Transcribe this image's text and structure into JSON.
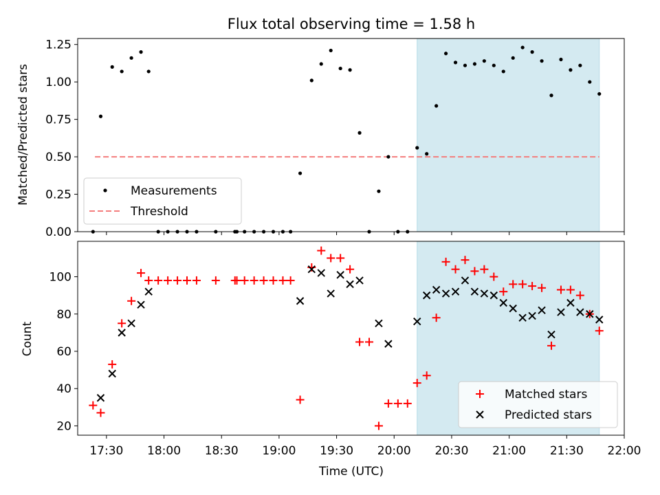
{
  "chart_data": [
    {
      "type": "scatter",
      "title": "Flux total observing time = 1.58 h",
      "xlabel": "",
      "ylabel": "Matched/Predicted stars",
      "xlim": [
        "17:15",
        "22:00"
      ],
      "ylim": [
        0,
        1.29
      ],
      "yticks": [
        "0.00",
        "0.25",
        "0.50",
        "0.75",
        "1.00",
        "1.25"
      ],
      "shaded_region": {
        "from": "20:12",
        "to": "21:47",
        "color": "#d4eaf1"
      },
      "threshold": {
        "name": "Threshold",
        "value": 0.5,
        "from": "17:24",
        "to": "21:47",
        "color": "#f47c7c"
      },
      "legend": {
        "location": "lower-left",
        "entries": [
          "Measurements",
          "Threshold"
        ]
      },
      "series": [
        {
          "name": "Measurements",
          "marker": "dot",
          "color": "#000000",
          "points": [
            [
              "17:23",
              0.0
            ],
            [
              "17:27",
              0.77
            ],
            [
              "17:33",
              1.1
            ],
            [
              "17:38",
              1.07
            ],
            [
              "17:43",
              1.16
            ],
            [
              "17:48",
              1.2
            ],
            [
              "17:52",
              1.07
            ],
            [
              "17:57",
              0.0
            ],
            [
              "18:02",
              0.0
            ],
            [
              "18:07",
              0.0
            ],
            [
              "18:12",
              0.0
            ],
            [
              "18:17",
              0.0
            ],
            [
              "18:27",
              0.0
            ],
            [
              "18:37",
              0.0
            ],
            [
              "18:38",
              0.0
            ],
            [
              "18:42",
              0.0
            ],
            [
              "18:47",
              0.0
            ],
            [
              "18:52",
              0.0
            ],
            [
              "18:57",
              0.0
            ],
            [
              "19:02",
              0.0
            ],
            [
              "19:06",
              0.0
            ],
            [
              "19:11",
              0.39
            ],
            [
              "19:17",
              1.01
            ],
            [
              "19:22",
              1.12
            ],
            [
              "19:27",
              1.21
            ],
            [
              "19:32",
              1.09
            ],
            [
              "19:37",
              1.08
            ],
            [
              "19:42",
              0.66
            ],
            [
              "19:47",
              0.0
            ],
            [
              "19:52",
              0.27
            ],
            [
              "19:57",
              0.5
            ],
            [
              "20:02",
              0.0
            ],
            [
              "20:07",
              0.0
            ],
            [
              "20:12",
              0.56
            ],
            [
              "20:17",
              0.52
            ],
            [
              "20:22",
              0.84
            ],
            [
              "20:27",
              1.19
            ],
            [
              "20:32",
              1.13
            ],
            [
              "20:37",
              1.11
            ],
            [
              "20:42",
              1.12
            ],
            [
              "20:47",
              1.14
            ],
            [
              "20:52",
              1.11
            ],
            [
              "20:57",
              1.07
            ],
            [
              "21:02",
              1.16
            ],
            [
              "21:07",
              1.23
            ],
            [
              "21:12",
              1.2
            ],
            [
              "21:17",
              1.14
            ],
            [
              "21:22",
              0.91
            ],
            [
              "21:27",
              1.15
            ],
            [
              "21:32",
              1.08
            ],
            [
              "21:37",
              1.11
            ],
            [
              "21:42",
              1.0
            ],
            [
              "21:47",
              0.92
            ]
          ]
        }
      ]
    },
    {
      "type": "scatter",
      "title": "",
      "xlabel": "Time (UTC)",
      "ylabel": "Count",
      "xlim": [
        "17:15",
        "22:00"
      ],
      "ylim": [
        15,
        119
      ],
      "yticks": [
        "20",
        "40",
        "60",
        "80",
        "100"
      ],
      "xticks": [
        "17:30",
        "18:00",
        "18:30",
        "19:00",
        "19:30",
        "20:00",
        "20:30",
        "21:00",
        "21:30",
        "22:00"
      ],
      "shaded_region": {
        "from": "20:12",
        "to": "21:47",
        "color": "#d4eaf1"
      },
      "legend": {
        "location": "lower-right",
        "entries": [
          "Matched stars",
          "Predicted stars"
        ]
      },
      "series": [
        {
          "name": "Matched stars",
          "marker": "plus",
          "color": "#ff0000",
          "points": [
            [
              "17:23",
              31
            ],
            [
              "17:27",
              27
            ],
            [
              "17:33",
              53
            ],
            [
              "17:38",
              75
            ],
            [
              "17:43",
              87
            ],
            [
              "17:48",
              102
            ],
            [
              "17:52",
              98
            ],
            [
              "17:57",
              98
            ],
            [
              "18:02",
              98
            ],
            [
              "18:07",
              98
            ],
            [
              "18:12",
              98
            ],
            [
              "18:17",
              98
            ],
            [
              "18:27",
              98
            ],
            [
              "18:37",
              98
            ],
            [
              "18:38",
              98
            ],
            [
              "18:42",
              98
            ],
            [
              "18:47",
              98
            ],
            [
              "18:52",
              98
            ],
            [
              "18:57",
              98
            ],
            [
              "19:02",
              98
            ],
            [
              "19:06",
              98
            ],
            [
              "19:11",
              34
            ],
            [
              "19:17",
              105
            ],
            [
              "19:22",
              114
            ],
            [
              "19:27",
              110
            ],
            [
              "19:32",
              110
            ],
            [
              "19:37",
              104
            ],
            [
              "19:42",
              65
            ],
            [
              "19:47",
              65
            ],
            [
              "19:52",
              20
            ],
            [
              "19:57",
              32
            ],
            [
              "20:02",
              32
            ],
            [
              "20:07",
              32
            ],
            [
              "20:12",
              43
            ],
            [
              "20:17",
              47
            ],
            [
              "20:22",
              78
            ],
            [
              "20:27",
              108
            ],
            [
              "20:32",
              104
            ],
            [
              "20:37",
              109
            ],
            [
              "20:42",
              103
            ],
            [
              "20:47",
              104
            ],
            [
              "20:52",
              100
            ],
            [
              "20:57",
              92
            ],
            [
              "21:02",
              96
            ],
            [
              "21:07",
              96
            ],
            [
              "21:12",
              95
            ],
            [
              "21:17",
              94
            ],
            [
              "21:22",
              63
            ],
            [
              "21:27",
              93
            ],
            [
              "21:32",
              93
            ],
            [
              "21:37",
              90
            ],
            [
              "21:42",
              80
            ],
            [
              "21:47",
              71
            ]
          ]
        },
        {
          "name": "Predicted stars",
          "marker": "x",
          "color": "#000000",
          "points": [
            [
              "17:27",
              35
            ],
            [
              "17:33",
              48
            ],
            [
              "17:38",
              70
            ],
            [
              "17:43",
              75
            ],
            [
              "17:48",
              85
            ],
            [
              "17:52",
              92
            ],
            [
              "19:11",
              87
            ],
            [
              "19:17",
              104
            ],
            [
              "19:22",
              102
            ],
            [
              "19:27",
              91
            ],
            [
              "19:32",
              101
            ],
            [
              "19:37",
              96
            ],
            [
              "19:42",
              98
            ],
            [
              "19:52",
              75
            ],
            [
              "19:57",
              64
            ],
            [
              "20:12",
              76
            ],
            [
              "20:17",
              90
            ],
            [
              "20:22",
              93
            ],
            [
              "20:27",
              91
            ],
            [
              "20:32",
              92
            ],
            [
              "20:37",
              98
            ],
            [
              "20:42",
              92
            ],
            [
              "20:47",
              91
            ],
            [
              "20:52",
              90
            ],
            [
              "20:57",
              86
            ],
            [
              "21:02",
              83
            ],
            [
              "21:07",
              78
            ],
            [
              "21:12",
              79
            ],
            [
              "21:17",
              82
            ],
            [
              "21:22",
              69
            ],
            [
              "21:27",
              81
            ],
            [
              "21:32",
              86
            ],
            [
              "21:37",
              81
            ],
            [
              "21:42",
              80
            ],
            [
              "21:47",
              77
            ]
          ]
        }
      ]
    }
  ]
}
